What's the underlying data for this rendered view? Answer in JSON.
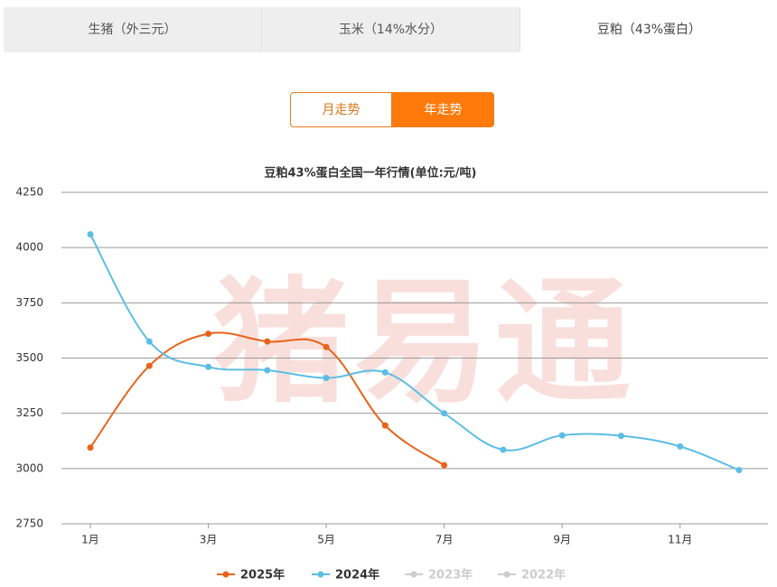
{
  "tabs": [
    "生猪（外三元）",
    "玉米（14%水分）",
    "豆粕（43%蛋白）"
  ],
  "active_tab": 2,
  "buttons": [
    "月走势",
    "年走势"
  ],
  "active_button": 1,
  "chart_data": {
    "type": "line",
    "title": "豆粕43%蛋白全国一年行情(单位:元/吨)",
    "watermark": "猪易通",
    "categories": [
      "1月",
      null,
      "3月",
      null,
      "5月",
      null,
      "7月",
      null,
      "9月",
      null,
      "11月",
      null
    ],
    "series": [
      {
        "name": "2025年",
        "color": "#e8631a",
        "visible": true,
        "values": [
          3095,
          3465,
          3610,
          3575,
          3550,
          3195,
          3015,
          null,
          null,
          null,
          null,
          null
        ]
      },
      {
        "name": "2024年",
        "color": "#5bbde4",
        "visible": true,
        "values": [
          4060,
          3575,
          3460,
          3445,
          3410,
          3435,
          3250,
          3085,
          3150,
          3148,
          3100,
          2993
        ]
      },
      {
        "name": "2023年",
        "color": "#cccccc",
        "visible": false,
        "values": [
          null,
          null,
          null,
          null,
          null,
          null,
          null,
          null,
          null,
          null,
          null,
          null
        ]
      },
      {
        "name": "2022年",
        "color": "#cccccc",
        "visible": false,
        "values": [
          null,
          null,
          null,
          null,
          null,
          null,
          null,
          null,
          null,
          null,
          null,
          null
        ]
      }
    ],
    "ylim": [
      2750,
      4250
    ],
    "yticks": [
      2750,
      3000,
      3250,
      3500,
      3750,
      4000,
      4250
    ],
    "grid": true
  }
}
